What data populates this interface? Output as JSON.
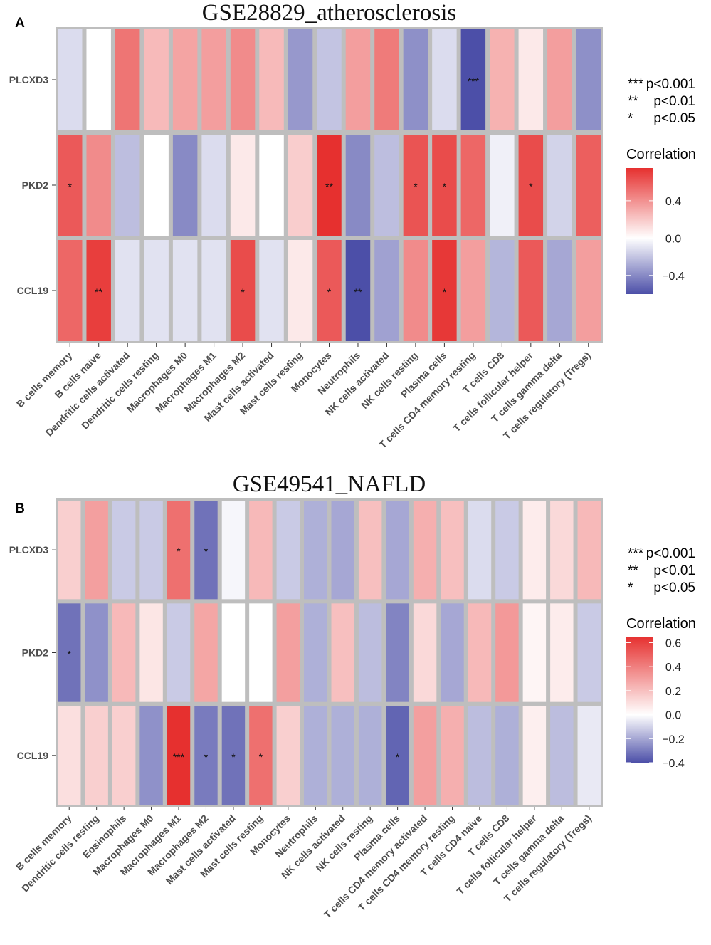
{
  "chart_data": [
    {
      "type": "heatmap",
      "panel": "A",
      "title": "GSE28829_atherosclerosis",
      "rows": [
        "PLCXD3",
        "PKD2",
        "CCL19"
      ],
      "columns": [
        "B cells memory",
        "B cells naive",
        "Dendritic cells activated",
        "Dendritic cells resting",
        "Macrophages M0",
        "Macrophages M1",
        "Macrophages M2",
        "Mast cells activated",
        "Mast cells resting",
        "Monocytes",
        "Neutrophils",
        "NK cells activated",
        "NK cells resting",
        "Plasma cells",
        "T cells CD4 memory resting",
        "T cells CD8",
        "T cells follicular helper",
        "T cells gamma delta",
        "T cells regulatory (Tregs)"
      ],
      "values": [
        [
          -0.12,
          0.0,
          0.5,
          0.25,
          0.33,
          0.35,
          0.42,
          0.25,
          -0.35,
          -0.2,
          0.35,
          0.48,
          -0.38,
          -0.12,
          -0.62,
          0.28,
          0.08,
          0.35,
          -0.38
        ],
        [
          0.6,
          0.42,
          -0.22,
          0.0,
          -0.4,
          -0.12,
          0.08,
          0.0,
          0.18,
          0.75,
          -0.4,
          -0.22,
          0.62,
          0.65,
          0.55,
          -0.05,
          0.65,
          -0.15,
          0.58
        ],
        [
          0.55,
          0.7,
          -0.1,
          -0.1,
          -0.1,
          -0.1,
          0.65,
          -0.1,
          0.08,
          0.6,
          -0.6,
          -0.32,
          0.42,
          0.72,
          0.35,
          -0.25,
          0.6,
          -0.3,
          0.35
        ]
      ],
      "significance": [
        [
          "",
          "",
          "",
          "",
          "",
          "",
          "",
          "",
          "",
          "",
          "",
          "",
          "",
          "",
          "***",
          "",
          "",
          "",
          ""
        ],
        [
          "*",
          "",
          "",
          "",
          "",
          "",
          "",
          "",
          "",
          "**",
          "",
          "",
          "*",
          "*",
          "",
          "",
          "*",
          "",
          ""
        ],
        [
          "",
          "**",
          "",
          "",
          "",
          "",
          "*",
          "",
          "",
          "*",
          "**",
          "",
          "",
          "*",
          "",
          "",
          "",
          "",
          ""
        ]
      ],
      "legend": {
        "sig_markers": [
          "***",
          "**",
          "*"
        ],
        "sig_labels": [
          "p<0.001",
          "p<0.01",
          "p<0.05"
        ],
        "title": "Correlation",
        "min": -0.6,
        "max": 0.75,
        "ticks": [
          0.4,
          0.0,
          -0.4
        ],
        "tick_labels": [
          "0.4",
          "0.0",
          "−0.4"
        ]
      }
    },
    {
      "type": "heatmap",
      "panel": "B",
      "title": "GSE49541_NAFLD",
      "rows": [
        "PLCXD3",
        "PKD2",
        "CCL19"
      ],
      "columns": [
        "B cells memory",
        "Dendritic cells resting",
        "Eosinophils",
        "Macrophages M0",
        "Macrophages M1",
        "Macrophages M2",
        "Mast cells activated",
        "Mast cells resting",
        "Monocytes",
        "Neutrophils",
        "NK cells activated",
        "NK cells resting",
        "Plasma cells",
        "T cells CD4 memory activated",
        "T cells CD4 memory resting",
        "T cells CD4 naive",
        "T cells CD8",
        "T cells follicular helper",
        "T cells gamma delta",
        "T cells regulatory (Tregs)"
      ],
      "values": [
        [
          0.15,
          0.3,
          -0.12,
          -0.12,
          0.45,
          -0.32,
          -0.02,
          0.22,
          -0.12,
          -0.18,
          -0.2,
          0.2,
          -0.2,
          0.25,
          0.2,
          -0.08,
          -0.12,
          0.06,
          0.12,
          0.22
        ],
        [
          -0.32,
          -0.25,
          0.22,
          0.08,
          -0.12,
          0.28,
          0.0,
          0.0,
          0.3,
          -0.18,
          0.2,
          -0.15,
          -0.28,
          0.12,
          -0.2,
          0.22,
          0.32,
          0.03,
          0.06,
          -0.12
        ],
        [
          0.1,
          0.15,
          0.15,
          -0.25,
          0.65,
          -0.3,
          -0.32,
          0.45,
          0.15,
          -0.18,
          -0.18,
          -0.18,
          -0.35,
          0.3,
          0.25,
          -0.15,
          -0.18,
          0.05,
          -0.15,
          -0.05
        ]
      ],
      "significance": [
        [
          "",
          "",
          "",
          "",
          "*",
          "*",
          "",
          "",
          "",
          "",
          "",
          "",
          "",
          "",
          "",
          "",
          "",
          "",
          "",
          ""
        ],
        [
          "*",
          "",
          "",
          "",
          "",
          "",
          "",
          "",
          "",
          "",
          "",
          "",
          "",
          "",
          "",
          "",
          "",
          "",
          "",
          ""
        ],
        [
          "",
          "",
          "",
          "",
          "***",
          "*",
          "*",
          "*",
          "",
          "",
          "",
          "",
          "*",
          "",
          "",
          "",
          "",
          "",
          "",
          ""
        ]
      ],
      "legend": {
        "sig_markers": [
          "***",
          "**",
          "*"
        ],
        "sig_labels": [
          "p<0.001",
          "p<0.01",
          "p<0.05"
        ],
        "title": "Correlation",
        "min": -0.4,
        "max": 0.65,
        "ticks": [
          0.6,
          0.4,
          0.2,
          0.0,
          -0.2,
          -0.4
        ],
        "tick_labels": [
          "0.6",
          "0.4",
          "0.2",
          "0.0",
          "−0.2",
          "−0.4"
        ]
      }
    }
  ],
  "colors": {
    "low": "#4c4fa8",
    "mid": "#ffffff",
    "high": "#e6302f",
    "border": "#bebebe"
  }
}
